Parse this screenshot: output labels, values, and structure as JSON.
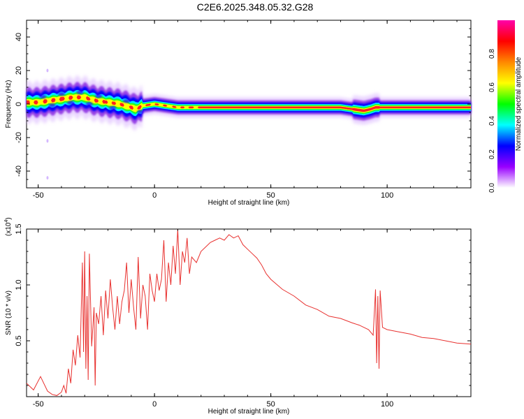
{
  "figure": {
    "title": "C2E6.2025.348.05.32.G28"
  },
  "chart_data": [
    {
      "type": "heatmap",
      "xlabel": "Height of straight line (km)",
      "ylabel": "Frequency (Hz)",
      "xlim": [
        -55,
        136
      ],
      "ylim": [
        -50,
        50
      ],
      "xticks": [
        "-50",
        "0",
        "50",
        "100"
      ],
      "yticks": [
        "-40",
        "-20",
        "0",
        "20",
        "40"
      ],
      "colorbar": {
        "label": "Normalized spectral amplitude",
        "range": [
          0,
          1
        ],
        "ticks": [
          "0.0",
          "0.2",
          "0.4",
          "0.6",
          "0.8"
        ],
        "colormap": [
          "#ffffff",
          "#9900ff",
          "#0000ff",
          "#00ffff",
          "#00ff00",
          "#ffff00",
          "#ff8800",
          "#ff0000",
          "#ff00aa"
        ]
      },
      "ridge": {
        "x": [
          -55,
          -50,
          -45,
          -40,
          -35,
          -30,
          -28,
          -25,
          -20,
          -15,
          -10,
          -8,
          -5,
          0,
          5,
          10,
          20,
          40,
          60,
          80,
          85,
          90,
          93,
          95,
          100,
          120,
          136
        ],
        "frequency": [
          1,
          1,
          2,
          3,
          4,
          4,
          3,
          2,
          1,
          0,
          -2,
          -3,
          -1,
          0,
          -1,
          -2,
          -2,
          -2,
          -2,
          -2,
          -3,
          -4,
          -3,
          -2,
          -2,
          -2,
          -2
        ]
      },
      "outliers": [
        {
          "x": -46,
          "frequency": 20
        },
        {
          "x": -46,
          "frequency": -44
        },
        {
          "x": -46,
          "frequency": -22
        }
      ]
    },
    {
      "type": "line",
      "xlabel": "Height of straight line (km)",
      "ylabel": "SNR (10 * v/v)",
      "yscale_label": "(x10",
      "yscale_exp": "4",
      "xlim": [
        -55,
        136
      ],
      "ylim": [
        0.0,
        1.5
      ],
      "xticks": [
        "-50",
        "0",
        "50",
        "100"
      ],
      "yticks": [
        "0.5",
        "1.0",
        "1.5"
      ],
      "line_color": "#e8312f",
      "series": [
        {
          "x": [
            -55,
            -52,
            -49,
            -46,
            -44,
            -42,
            -40,
            -39,
            -38,
            -37,
            -36,
            -35,
            -34,
            -33,
            -32,
            -31,
            -30.5,
            -30,
            -29.5,
            -29,
            -28.5,
            -28,
            -27,
            -26,
            -25.5,
            -25,
            -24,
            -23,
            -22,
            -21,
            -20,
            -19,
            -18,
            -17,
            -16,
            -15,
            -14,
            -13,
            -12,
            -11,
            -10,
            -9,
            -8,
            -7,
            -6,
            -5,
            -4,
            -3,
            -2,
            -1,
            0,
            1,
            2,
            3,
            4,
            5,
            6,
            7,
            8,
            9,
            10,
            11,
            12,
            13,
            14,
            15,
            16,
            18,
            20,
            22,
            24,
            26,
            28,
            30,
            32,
            34,
            36,
            38,
            40,
            42,
            44,
            46,
            48,
            50,
            55,
            60,
            65,
            70,
            75,
            80,
            85,
            88,
            90,
            92,
            94,
            95,
            95.5,
            96,
            96.5,
            97,
            98,
            100,
            105,
            110,
            115,
            120,
            125,
            130,
            136
          ],
          "values": [
            0.12,
            0.06,
            0.18,
            0.05,
            0.02,
            0.01,
            0.04,
            0.1,
            0.03,
            0.25,
            0.12,
            0.42,
            0.28,
            0.55,
            0.35,
            1.2,
            0.4,
            1.3,
            0.25,
            0.9,
            0.15,
            1.28,
            0.45,
            0.8,
            0.1,
            0.75,
            0.65,
            0.9,
            0.55,
            0.95,
            0.7,
            1.05,
            0.8,
            0.6,
            0.9,
            0.65,
            0.85,
            0.95,
            1.2,
            0.75,
            1.05,
            0.8,
            0.6,
            1.25,
            0.7,
            1.0,
            0.9,
            0.6,
            1.1,
            0.95,
            0.85,
            1.1,
            0.95,
            1.05,
            1.4,
            0.85,
            1.2,
            1.0,
            1.35,
            1.1,
            1.5,
            1.0,
            1.3,
            1.2,
            1.42,
            1.1,
            1.25,
            1.2,
            1.3,
            1.34,
            1.38,
            1.4,
            1.42,
            1.4,
            1.45,
            1.42,
            1.44,
            1.36,
            1.32,
            1.28,
            1.24,
            1.18,
            1.1,
            1.05,
            0.96,
            0.9,
            0.82,
            0.78,
            0.72,
            0.7,
            0.66,
            0.64,
            0.62,
            0.6,
            0.55,
            0.96,
            0.3,
            0.9,
            0.25,
            0.95,
            0.62,
            0.6,
            0.58,
            0.56,
            0.53,
            0.52,
            0.5,
            0.48,
            0.47
          ]
        }
      ]
    }
  ]
}
